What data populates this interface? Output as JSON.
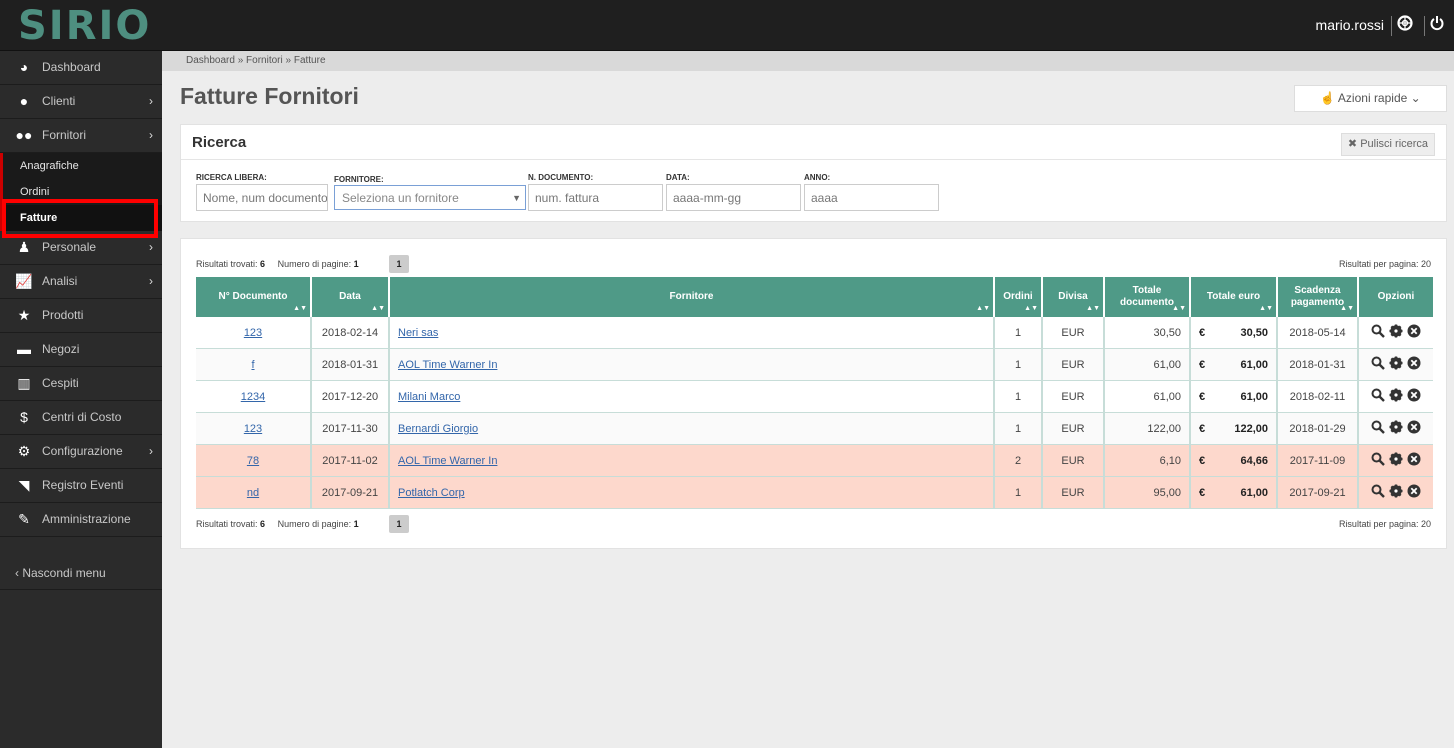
{
  "app": {
    "logo": "SIRIO",
    "user": "mario.rossi",
    "icons": [
      "lifebuoy-icon",
      "power-icon"
    ]
  },
  "sidebar": {
    "items": [
      {
        "label": "Dashboard",
        "icon": "dashboard-icon",
        "chevron": false
      },
      {
        "label": "Clienti",
        "icon": "user-icon",
        "chevron": true
      },
      {
        "label": "Fornitori",
        "icon": "users-icon",
        "chevron": true
      },
      {
        "label": "Personale",
        "icon": "person-icon",
        "chevron": true
      },
      {
        "label": "Analisi",
        "icon": "line-chart-icon",
        "chevron": true
      },
      {
        "label": "Prodotti",
        "icon": "star-icon",
        "chevron": false
      },
      {
        "label": "Negozi",
        "icon": "cart-icon",
        "chevron": false
      },
      {
        "label": "Cespiti",
        "icon": "bank-icon",
        "chevron": false
      },
      {
        "label": "Centri di Costo",
        "icon": "dollar-icon",
        "chevron": false
      },
      {
        "label": "Configurazione",
        "icon": "gear-icon",
        "chevron": true
      },
      {
        "label": "Registro Eventi",
        "icon": "rss-icon",
        "chevron": false
      },
      {
        "label": "Amministrazione",
        "icon": "wrench-icon",
        "chevron": false
      }
    ],
    "sub_items": [
      {
        "label": "Anagrafiche"
      },
      {
        "label": "Ordini"
      },
      {
        "label": "Fatture",
        "active": true
      }
    ],
    "hide_menu": "Nascondi menu"
  },
  "breadcrumb": "Dashboard » Fornitori » Fatture",
  "page_title": "Fatture Fornitori",
  "quick_actions": "Azioni rapide",
  "search": {
    "title": "Ricerca",
    "clear": "Pulisci ricerca",
    "fields": {
      "free": {
        "label": "RICERCA LIBERA:",
        "placeholder": "Nome, num documento"
      },
      "fornitore": {
        "label": "FORNITORE:",
        "placeholder": "Seleziona un fornitore"
      },
      "num_doc": {
        "label": "N. DOCUMENTO:",
        "placeholder": "num. fattura"
      },
      "data": {
        "label": "DATA:",
        "placeholder": "aaaa-mm-gg"
      },
      "anno": {
        "label": "ANNO:",
        "placeholder": "aaaa"
      }
    }
  },
  "results": {
    "found_label": "Risultati trovati:",
    "found": "6",
    "pages_label": "Numero di pagine:",
    "pages": "1",
    "page_button": "1",
    "per_page": "Risultati per pagina: 20"
  },
  "table": {
    "headers": {
      "num_doc": "N° Documento",
      "data": "Data",
      "fornitore": "Fornitore",
      "ordini": "Ordini",
      "divisa": "Divisa",
      "totale_doc_1": "Totale",
      "totale_doc_2": "documento",
      "totale_euro": "Totale euro",
      "scadenza_1": "Scadenza",
      "scadenza_2": "pagamento",
      "opzioni": "Opzioni"
    },
    "sort_icon": "▲▼",
    "euro_symbol": "€",
    "rows": [
      {
        "num": "123",
        "data": "2018-02-14",
        "fornitore": "Neri sas",
        "ordini": "1",
        "divisa": "EUR",
        "totale": "30,50",
        "euro": "30,50",
        "scadenza": "2018-05-14",
        "status": "normal"
      },
      {
        "num": "f",
        "data": "2018-01-31",
        "fornitore": "AOL Time Warner In",
        "ordini": "1",
        "divisa": "EUR",
        "totale": "61,00",
        "euro": "61,00",
        "scadenza": "2018-01-31",
        "status": "alt"
      },
      {
        "num": "1234",
        "data": "2017-12-20",
        "fornitore": "Milani Marco",
        "ordini": "1",
        "divisa": "EUR",
        "totale": "61,00",
        "euro": "61,00",
        "scadenza": "2018-02-11",
        "status": "normal"
      },
      {
        "num": "123",
        "data": "2017-11-30",
        "fornitore": "Bernardi Giorgio",
        "ordini": "1",
        "divisa": "EUR",
        "totale": "122,00",
        "euro": "122,00",
        "scadenza": "2018-01-29",
        "status": "alt"
      },
      {
        "num": "78",
        "data": "2017-11-02",
        "fornitore": "AOL Time Warner In",
        "ordini": "2",
        "divisa": "EUR",
        "totale": "6,10",
        "euro": "64,66",
        "scadenza": "2017-11-09",
        "status": "warn"
      },
      {
        "num": "nd",
        "data": "2017-09-21",
        "fornitore": "Potlatch Corp",
        "ordini": "1",
        "divisa": "EUR",
        "totale": "95,00",
        "euro": "61,00",
        "scadenza": "2017-09-21",
        "status": "warn"
      }
    ],
    "row_actions": [
      "search-icon",
      "gear-icon",
      "close-circle-icon"
    ]
  },
  "colors": {
    "header_bg": "#4f9a87",
    "warn_row": "#fdd8cc",
    "sidebar": "#2b2b2b",
    "topbar": "#1f1f1f",
    "logo": "#4e8f80",
    "highlight": "#ff0000"
  }
}
